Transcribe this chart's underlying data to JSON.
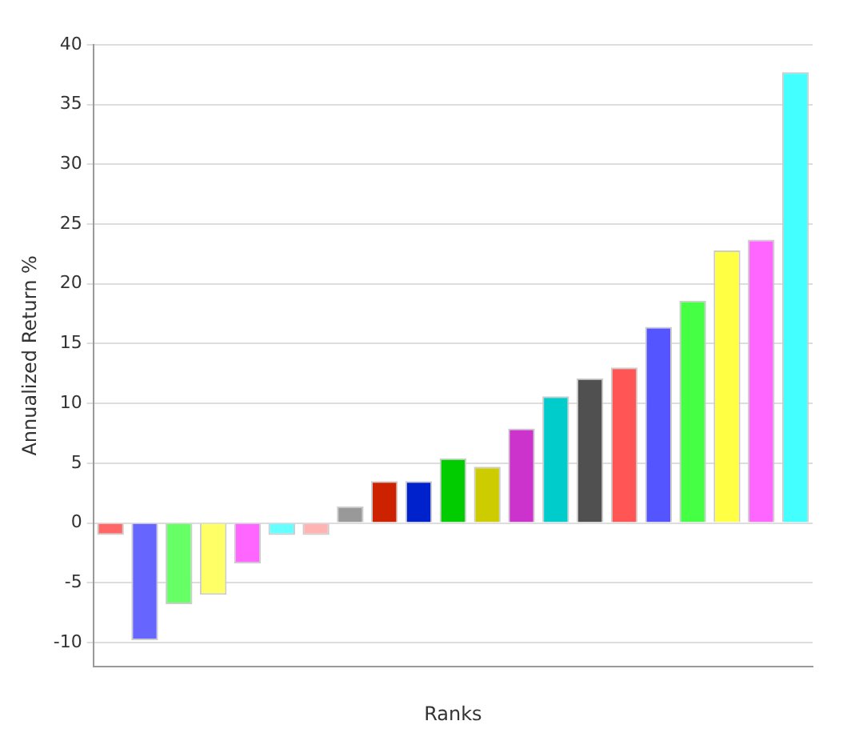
{
  "chart_data": {
    "type": "bar",
    "xlabel": "Ranks",
    "ylabel": "Annualized Return %",
    "categories": [
      null,
      null,
      null,
      null,
      null,
      null,
      null,
      null,
      null,
      null,
      null,
      null,
      null,
      null,
      null,
      null,
      null,
      null,
      null,
      null,
      null
    ],
    "values": [
      -1.0,
      -9.8,
      -6.8,
      -6.0,
      -3.4,
      -1.0,
      -1.0,
      1.4,
      3.5,
      3.5,
      5.4,
      4.7,
      7.9,
      10.6,
      12.1,
      13.0,
      16.4,
      18.6,
      22.8,
      23.7,
      37.7
    ],
    "colors": [
      "#ff6666",
      "#6666ff",
      "#66ff66",
      "#ffff66",
      "#ff66ff",
      "#66ffff",
      "#ffb3b3",
      "#999999",
      "#cc2200",
      "#0022cc",
      "#00cc00",
      "#cccc00",
      "#cc33cc",
      "#00cccc",
      "#505050",
      "#ff5555",
      "#5555ff",
      "#44ff44",
      "#ffff44",
      "#ff66ff",
      "#44ffff"
    ],
    "ylim": [
      -12,
      40
    ],
    "yticks": [
      -10,
      -5,
      0,
      5,
      10,
      15,
      20,
      25,
      30,
      35,
      40
    ],
    "grid": "y",
    "legend": false
  }
}
